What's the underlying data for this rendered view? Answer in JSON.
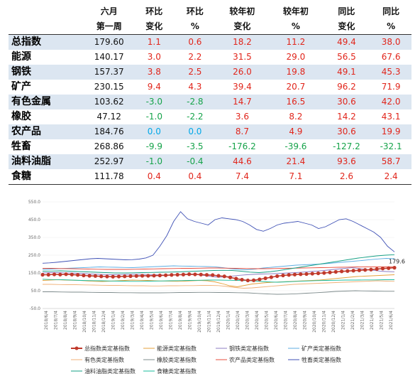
{
  "table": {
    "header_row1": [
      "",
      "六月",
      "环比",
      "环比",
      "较年初",
      "较年初",
      "同比",
      "同比"
    ],
    "header_row2": [
      "",
      "第一周",
      "变化",
      "%",
      "变化",
      "%",
      "变化",
      "%"
    ],
    "rows": [
      {
        "name": "总指数",
        "cells": [
          "179.60",
          "1.1",
          "0.6",
          "18.2",
          "11.2",
          "49.4",
          "38.0"
        ],
        "colors": [
          "black",
          "red",
          "red",
          "red",
          "red",
          "red",
          "red"
        ]
      },
      {
        "name": "能源",
        "cells": [
          "140.17",
          "3.0",
          "2.2",
          "31.5",
          "29.0",
          "56.5",
          "67.6"
        ],
        "colors": [
          "black",
          "red",
          "red",
          "red",
          "red",
          "red",
          "red"
        ]
      },
      {
        "name": "钢铁",
        "cells": [
          "157.37",
          "3.8",
          "2.5",
          "26.0",
          "19.8",
          "49.1",
          "45.3"
        ],
        "colors": [
          "black",
          "red",
          "red",
          "red",
          "red",
          "red",
          "red"
        ]
      },
      {
        "name": "矿产",
        "cells": [
          "230.15",
          "9.4",
          "4.3",
          "39.4",
          "20.7",
          "96.2",
          "71.9"
        ],
        "colors": [
          "black",
          "red",
          "red",
          "red",
          "red",
          "red",
          "red"
        ]
      },
      {
        "name": "有色金属",
        "cells": [
          "103.62",
          "-3.0",
          "-2.8",
          "14.7",
          "16.5",
          "30.6",
          "42.0"
        ],
        "colors": [
          "black",
          "green",
          "green",
          "red",
          "red",
          "red",
          "red"
        ]
      },
      {
        "name": "橡胶",
        "cells": [
          "47.12",
          "-1.0",
          "-2.2",
          "3.6",
          "8.2",
          "14.2",
          "43.1"
        ],
        "colors": [
          "black",
          "green",
          "green",
          "red",
          "red",
          "red",
          "red"
        ]
      },
      {
        "name": "农产品",
        "cells": [
          "184.76",
          "0.0",
          "0.0",
          "8.7",
          "4.9",
          "30.6",
          "19.9"
        ],
        "colors": [
          "black",
          "cyan",
          "cyan",
          "red",
          "red",
          "red",
          "red"
        ]
      },
      {
        "name": "牲畜",
        "cells": [
          "268.86",
          "-9.9",
          "-3.5",
          "-176.2",
          "-39.6",
          "-127.2",
          "-32.1"
        ],
        "colors": [
          "black",
          "green",
          "green",
          "green",
          "green",
          "green",
          "green"
        ]
      },
      {
        "name": "油料油脂",
        "cells": [
          "252.97",
          "-1.0",
          "-0.4",
          "44.6",
          "21.4",
          "93.6",
          "58.7"
        ],
        "colors": [
          "black",
          "green",
          "green",
          "red",
          "red",
          "red",
          "red"
        ]
      },
      {
        "name": "食糖",
        "cells": [
          "111.78",
          "0.4",
          "0.4",
          "7.4",
          "7.1",
          "2.6",
          "2.4"
        ],
        "colors": [
          "black",
          "red",
          "red",
          "red",
          "red",
          "red",
          "red"
        ]
      }
    ]
  },
  "colors": {
    "red": "#e1251b",
    "green": "#16a34a",
    "cyan": "#00a8e8",
    "black": "#111111",
    "band": "#dce6f1"
  },
  "chart_data": {
    "type": "line",
    "ylim": [
      -50,
      550
    ],
    "yticks": [
      "550.0",
      "450.0",
      "350.0",
      "250.0",
      "150.0",
      "50.0",
      "-50.0"
    ],
    "ytick_values": [
      550,
      450,
      350,
      250,
      150,
      50,
      -50
    ],
    "xticks": [
      "2018/6/4",
      "2018/7/4",
      "2018/8/4",
      "2018/9/4",
      "2018/10/4",
      "2018/11/4",
      "2018/12/4",
      "2019/1/4",
      "2019/2/4",
      "2019/3/4",
      "2019/4/4",
      "2019/5/4",
      "2019/6/4",
      "2019/7/4",
      "2019/8/4",
      "2019/9/4",
      "2019/10/4",
      "2019/11/4",
      "2019/12/4",
      "2020/1/4",
      "2020/2/4",
      "2020/3/4",
      "2020/4/4",
      "2020/5/4",
      "2020/6/4",
      "2020/7/4",
      "2020/8/4",
      "2020/9/4",
      "2020/10/4",
      "2020/11/4",
      "2020/12/4",
      "2021/1/4",
      "2021/2/4",
      "2021/3/4",
      "2021/4/4",
      "2021/5/4",
      "2021/6/4"
    ],
    "annotation": "179.6",
    "series": [
      {
        "name": "总指数类定基指数",
        "color": "#c0392b",
        "marker": true,
        "values": [
          140,
          140,
          142,
          141,
          143,
          141,
          139,
          136,
          134,
          133,
          131,
          130,
          129,
          130,
          131,
          132,
          133,
          134,
          134,
          135,
          136,
          137,
          139,
          140,
          141,
          143,
          142,
          141,
          139,
          138,
          134,
          131,
          125,
          118,
          112,
          108,
          109,
          114,
          120,
          126,
          132,
          136,
          139,
          141,
          143,
          144,
          146,
          148,
          150,
          153,
          156,
          159,
          161,
          163,
          165,
          167,
          169,
          172,
          175,
          177,
          179.6
        ]
      },
      {
        "name": "能源类定基指数",
        "color": "#e6a23c",
        "marker": false,
        "values": [
          108,
          110,
          112,
          110,
          109,
          108,
          105,
          103,
          102,
          104,
          106,
          108,
          110,
          109,
          108,
          106,
          105,
          104,
          103,
          104,
          106,
          108,
          106,
          100,
          90,
          78,
          72,
          80,
          88,
          92,
          96,
          98,
          100,
          102,
          104,
          106,
          108,
          110,
          114,
          118,
          122,
          126,
          130,
          132,
          134,
          136,
          138,
          140
        ]
      },
      {
        "name": "钢铁类定基指数",
        "color": "#8e7cc3",
        "marker": false,
        "values": [
          150,
          152,
          153,
          151,
          150,
          148,
          146,
          144,
          142,
          141,
          140,
          141,
          142,
          143,
          142,
          141,
          140,
          139,
          138,
          139,
          140,
          141,
          140,
          136,
          130,
          126,
          128,
          133,
          137,
          140,
          142,
          144,
          145,
          146,
          148,
          150,
          152,
          155,
          158,
          161,
          164,
          168,
          172,
          176,
          180,
          175,
          170,
          165,
          160,
          158,
          157
        ]
      },
      {
        "name": "矿产类定基指数",
        "color": "#5dade2",
        "marker": false,
        "values": [
          170,
          172,
          174,
          176,
          178,
          180,
          182,
          184,
          183,
          182,
          181,
          180,
          182,
          184,
          186,
          188,
          190,
          189,
          188,
          187,
          186,
          185,
          180,
          174,
          170,
          168,
          172,
          178,
          182,
          186,
          190,
          194,
          196,
          198,
          200,
          204,
          208,
          212,
          216,
          220,
          225,
          229,
          232,
          230
        ]
      },
      {
        "name": "有色类定基指数",
        "color": "#f0b27a",
        "marker": false,
        "values": [
          86,
          86,
          85,
          84,
          84,
          83,
          82,
          81,
          80,
          80,
          79,
          78,
          78,
          77,
          77,
          78,
          78,
          79,
          79,
          80,
          80,
          79,
          74,
          68,
          64,
          66,
          70,
          74,
          78,
          82,
          86,
          88,
          90,
          92,
          94,
          96,
          98,
          100,
          102,
          104,
          106,
          104,
          103
        ]
      },
      {
        "name": "橡胶类定基指数",
        "color": "#7f8c8d",
        "marker": false,
        "values": [
          44,
          44,
          43,
          42,
          42,
          41,
          40,
          40,
          39,
          39,
          38,
          38,
          38,
          39,
          40,
          40,
          41,
          41,
          40,
          40,
          39,
          38,
          35,
          32,
          30,
          31,
          33,
          36,
          39,
          42,
          46,
          48,
          50,
          49,
          48,
          47,
          47
        ]
      },
      {
        "name": "农产品类定基指数",
        "color": "#e74c3c",
        "marker": false,
        "values": [
          176,
          176,
          175,
          174,
          173,
          172,
          171,
          170,
          170,
          170,
          171,
          172,
          173,
          174,
          175,
          176,
          176,
          177,
          178,
          178,
          177,
          176,
          175,
          174,
          174,
          175,
          176,
          177,
          178,
          179,
          180,
          181,
          182,
          183,
          184,
          185,
          184,
          184,
          185
        ]
      },
      {
        "name": "牲畜类定基指数",
        "color": "#3f51b5",
        "marker": false,
        "values": [
          205,
          207,
          210,
          214,
          218,
          222,
          226,
          230,
          232,
          230,
          228,
          226,
          224,
          225,
          228,
          235,
          250,
          300,
          360,
          440,
          495,
          455,
          440,
          430,
          420,
          450,
          460,
          455,
          450,
          440,
          420,
          395,
          385,
          400,
          420,
          430,
          435,
          440,
          430,
          420,
          400,
          410,
          430,
          450,
          455,
          440,
          420,
          400,
          380,
          350,
          300,
          268.86
        ]
      },
      {
        "name": "油料油脂类定基指数",
        "color": "#16a085",
        "marker": false,
        "values": [
          160,
          161,
          162,
          160,
          158,
          156,
          154,
          152,
          150,
          150,
          151,
          152,
          153,
          154,
          155,
          156,
          158,
          160,
          162,
          164,
          165,
          164,
          160,
          155,
          152,
          156,
          162,
          170,
          178,
          186,
          194,
          202,
          210,
          218,
          226,
          234,
          240,
          246,
          250,
          253
        ]
      },
      {
        "name": "食糖类定基指数",
        "color": "#1abc9c",
        "marker": false,
        "values": [
          115,
          113,
          112,
          110,
          108,
          107,
          106,
          105,
          104,
          103,
          103,
          104,
          105,
          106,
          107,
          108,
          109,
          110,
          110,
          109,
          108,
          107,
          104,
          100,
          98,
          100,
          103,
          105,
          107,
          108,
          109,
          110,
          110,
          111,
          111,
          112,
          112
        ]
      }
    ],
    "legend_placement": "bottom"
  }
}
